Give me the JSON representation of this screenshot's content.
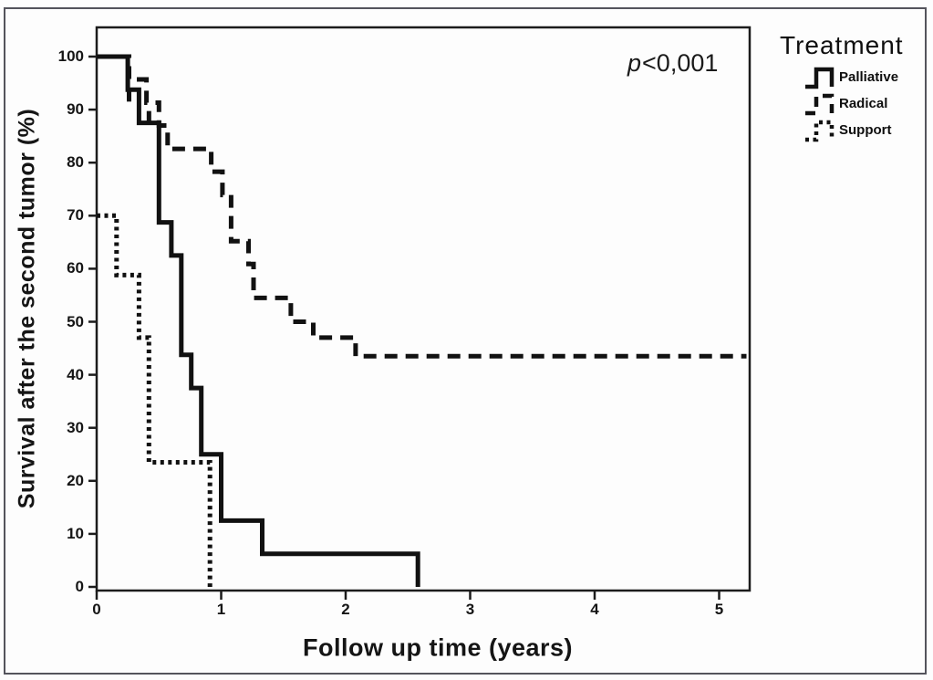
{
  "figure": {
    "kind": "kaplan-meier-survival-plot",
    "background_color": "#fdfdfd",
    "border_color": "#54545c",
    "line_color": "#111111"
  },
  "chart_data": {
    "type": "line",
    "subtype": "kaplan-meier-step",
    "title": "",
    "xlabel": "Follow up time (years)",
    "ylabel": "Survival after the second tumor (%)",
    "xlim": [
      0,
      5.25
    ],
    "ylim": [
      0,
      105
    ],
    "x_ticks": [
      0,
      1,
      2,
      3,
      4,
      5
    ],
    "y_ticks": [
      0,
      10,
      20,
      30,
      40,
      50,
      60,
      70,
      80,
      90,
      100
    ],
    "grid": false,
    "annotation": {
      "p_symbol": "p",
      "value": "<0,001"
    },
    "legend": {
      "title": "Treatment",
      "position": "top-right-outside",
      "entries": [
        {
          "label": "Palliative",
          "style": "solid"
        },
        {
          "label": "Radical",
          "style": "dashed"
        },
        {
          "label": "Support",
          "style": "dotted"
        }
      ]
    },
    "series": [
      {
        "name": "Palliative",
        "style": "solid",
        "points": [
          [
            0,
            100
          ],
          [
            0.25,
            100
          ],
          [
            0.25,
            93.75
          ],
          [
            0.34,
            93.75
          ],
          [
            0.34,
            87.5
          ],
          [
            0.5,
            87.5
          ],
          [
            0.5,
            68.75
          ],
          [
            0.6,
            68.75
          ],
          [
            0.6,
            62.5
          ],
          [
            0.68,
            62.5
          ],
          [
            0.68,
            43.75
          ],
          [
            0.76,
            43.75
          ],
          [
            0.76,
            37.5
          ],
          [
            0.84,
            37.5
          ],
          [
            0.84,
            25
          ],
          [
            1.0,
            25
          ],
          [
            1.0,
            12.5
          ],
          [
            1.33,
            12.5
          ],
          [
            1.33,
            6.25
          ],
          [
            2.58,
            6.25
          ],
          [
            2.58,
            0
          ]
        ],
        "censor_marks": [
          {
            "x": 0.26,
            "y": 93.75,
            "dir": "down"
          },
          {
            "x": 0.42,
            "y": 87.5,
            "dir": "up"
          }
        ]
      },
      {
        "name": "Radical",
        "style": "dashed",
        "points": [
          [
            0,
            100
          ],
          [
            0.26,
            100
          ],
          [
            0.26,
            95.7
          ],
          [
            0.4,
            95.7
          ],
          [
            0.4,
            91.3
          ],
          [
            0.5,
            91.3
          ],
          [
            0.5,
            87.0
          ],
          [
            0.57,
            87.0
          ],
          [
            0.57,
            82.6
          ],
          [
            0.92,
            82.6
          ],
          [
            0.92,
            78.3
          ],
          [
            1.01,
            78.3
          ],
          [
            1.01,
            73.9
          ],
          [
            1.08,
            73.9
          ],
          [
            1.08,
            65.2
          ],
          [
            1.22,
            65.2
          ],
          [
            1.22,
            60.9
          ],
          [
            1.26,
            60.9
          ],
          [
            1.26,
            54.5
          ],
          [
            1.56,
            54.5
          ],
          [
            1.56,
            50.0
          ],
          [
            1.74,
            50.0
          ],
          [
            1.74,
            47.0
          ],
          [
            2.08,
            47.0
          ],
          [
            2.08,
            43.5
          ],
          [
            5.22,
            43.5
          ]
        ],
        "censor_marks": []
      },
      {
        "name": "Support",
        "style": "dotted",
        "points": [
          [
            0,
            70
          ],
          [
            0.16,
            70
          ],
          [
            0.16,
            58.8
          ],
          [
            0.34,
            58.8
          ],
          [
            0.34,
            47.0
          ],
          [
            0.42,
            47.0
          ],
          [
            0.42,
            23.5
          ],
          [
            0.91,
            23.5
          ],
          [
            0.91,
            0
          ]
        ],
        "censor_marks": []
      }
    ]
  }
}
